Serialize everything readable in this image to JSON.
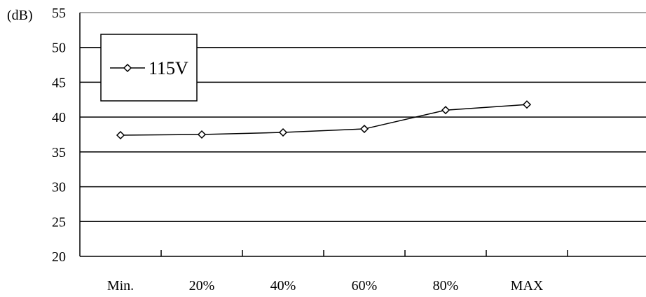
{
  "chart_data": {
    "type": "line",
    "ylabel": "(dB)",
    "ylim": [
      20,
      55
    ],
    "yticks": [
      20,
      25,
      30,
      35,
      40,
      45,
      50,
      55
    ],
    "categories": [
      "Min.",
      "20%",
      "40%",
      "60%",
      "80%",
      "MAX"
    ],
    "series": [
      {
        "name": "115V",
        "values": [
          37.4,
          37.5,
          37.8,
          38.3,
          41.0,
          41.8
        ],
        "marker": "diamond",
        "color": "#000000"
      }
    ],
    "grid": true,
    "legend": "top-left"
  }
}
